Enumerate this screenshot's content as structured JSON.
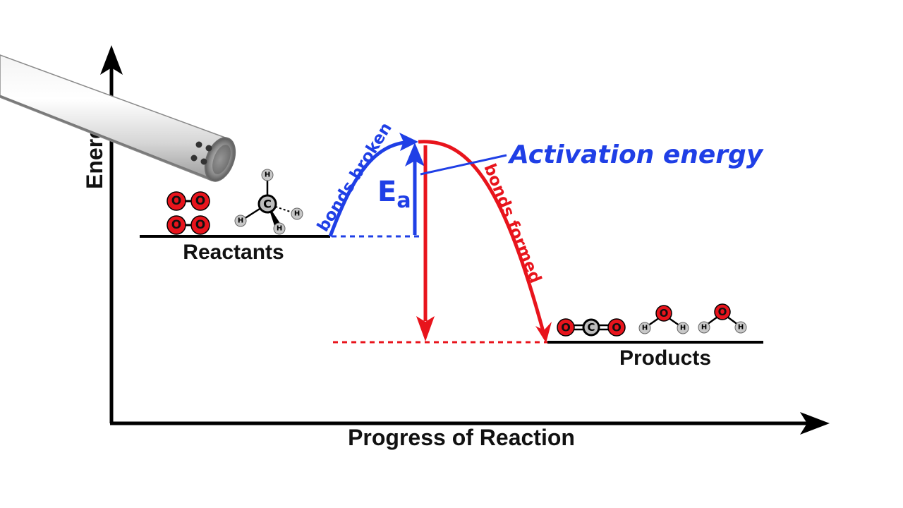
{
  "axes": {
    "y_label": "Energy",
    "x_label": "Progress of Reaction"
  },
  "labels": {
    "reactants": "Reactants",
    "products": "Products",
    "bonds_broken": "bonds broken",
    "bonds_formed": "bonds formed",
    "activation_energy": "Activation energy",
    "ea_main": "E",
    "ea_sub": "a"
  },
  "atoms": {
    "oxygen": "O",
    "carbon": "C",
    "hydrogen": "H"
  },
  "colors": {
    "axis": "#000000",
    "blue": "#1f3fe6",
    "red": "#e8141c",
    "oxygen_fill": "#e8141c",
    "hydrogen_fill": "#c8c8c8"
  }
}
